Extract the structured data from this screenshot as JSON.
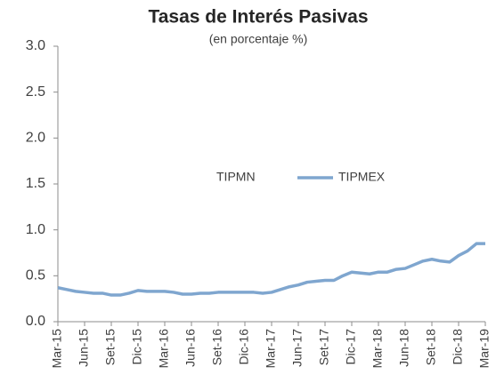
{
  "chart_data": {
    "type": "line",
    "title": "Tasas de Interés Pasivas",
    "subtitle": "(en porcentaje %)",
    "categories": [
      "Mar-15",
      null,
      null,
      "Jun-15",
      null,
      null,
      "Set-15",
      null,
      null,
      "Dic-15",
      null,
      null,
      "Mar-16",
      null,
      null,
      "Jun-16",
      null,
      null,
      "Set-16",
      null,
      null,
      "Dic-16",
      null,
      null,
      "Mar-17",
      null,
      null,
      "Jun-17",
      null,
      null,
      "Set-17",
      null,
      null,
      "Dic-17",
      null,
      null,
      "Mar-18",
      null,
      null,
      "Jun-18",
      null,
      null,
      "Set-18",
      null,
      null,
      "Dic-18",
      null,
      null,
      "Mar-19"
    ],
    "legend": [
      "TIPMN",
      "TIPMEX"
    ],
    "series": [
      {
        "name": "TIPMEX",
        "color": "#7fa6cf",
        "values": [
          0.37,
          0.35,
          0.33,
          0.32,
          0.31,
          0.31,
          0.29,
          0.29,
          0.31,
          0.34,
          0.33,
          0.33,
          0.33,
          0.32,
          0.3,
          0.3,
          0.31,
          0.31,
          0.32,
          0.32,
          0.32,
          0.32,
          0.32,
          0.31,
          0.32,
          0.35,
          0.38,
          0.4,
          0.43,
          0.44,
          0.45,
          0.45,
          0.5,
          0.54,
          0.53,
          0.52,
          0.54,
          0.54,
          0.57,
          0.58,
          0.62,
          0.66,
          0.68,
          0.66,
          0.65,
          0.72,
          0.77,
          0.85,
          0.85
        ]
      }
    ],
    "ylim": [
      0,
      3
    ],
    "yticks": [
      {
        "value": 0,
        "label": "0.0"
      },
      {
        "value": 0.5,
        "label": "0.5"
      },
      {
        "value": 1,
        "label": "1.0"
      },
      {
        "value": 1.5,
        "label": "1.5"
      },
      {
        "value": 2,
        "label": "2.0"
      },
      {
        "value": 2.5,
        "label": "2.5"
      },
      {
        "value": 3,
        "label": "3.0"
      }
    ],
    "grid": false
  }
}
